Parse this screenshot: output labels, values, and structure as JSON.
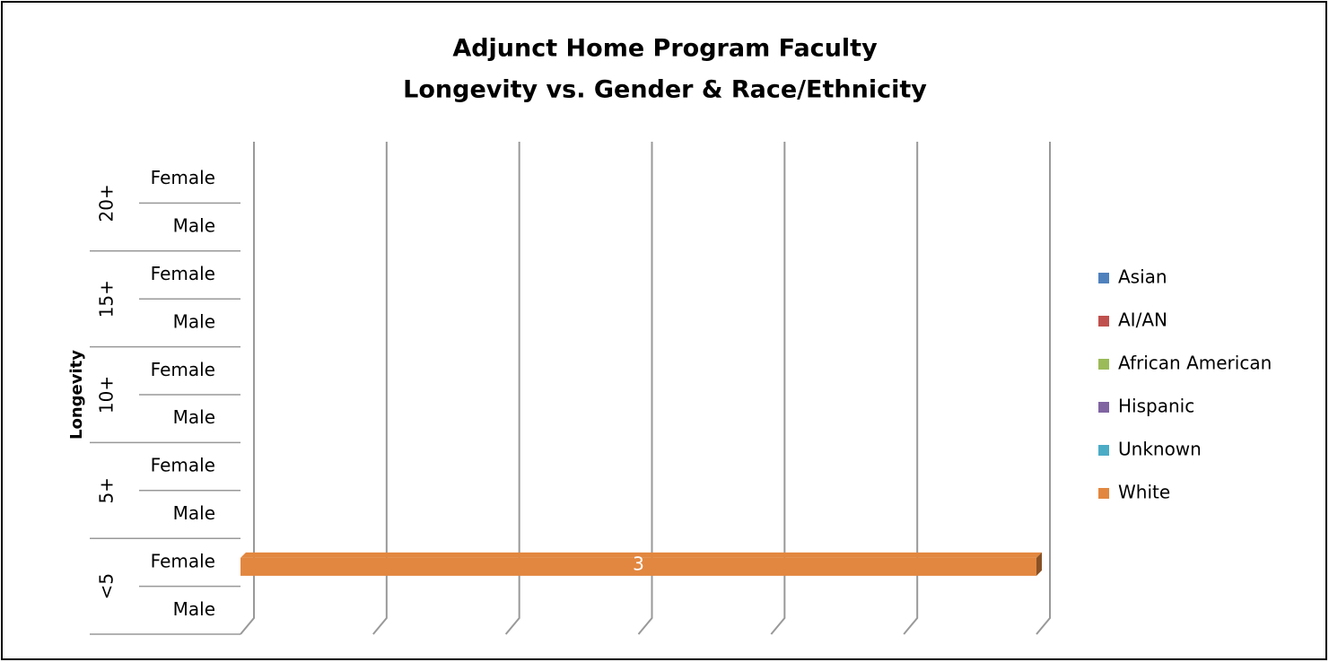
{
  "chart_data": {
    "type": "bar",
    "stacked": true,
    "orientation": "horizontal",
    "title": [
      "Adjunct Home Program Faculty",
      "Longevity vs. Gender & Race/Ethnicity"
    ],
    "y_label": "Longevity",
    "groups": [
      "20+",
      "15+",
      "10+",
      "5+",
      "<5"
    ],
    "categories": [
      "Female",
      "Male",
      "Female",
      "Male",
      "Female",
      "Male",
      "Female",
      "Male",
      "Female",
      "Male"
    ],
    "series": [
      {
        "name": "Asian",
        "color": "#4f81bd",
        "values": [
          0,
          0,
          0,
          0,
          0,
          0,
          0,
          0,
          0,
          0
        ]
      },
      {
        "name": "AI/AN",
        "color": "#c0504d",
        "values": [
          0,
          0,
          0,
          0,
          0,
          0,
          0,
          0,
          0,
          0
        ]
      },
      {
        "name": "African American",
        "color": "#9bbb59",
        "values": [
          0,
          0,
          0,
          0,
          0,
          0,
          0,
          0,
          0,
          0
        ]
      },
      {
        "name": "Hispanic",
        "color": "#8064a2",
        "values": [
          0,
          0,
          0,
          0,
          0,
          0,
          0,
          0,
          0,
          0
        ]
      },
      {
        "name": "Unknown",
        "color": "#4bacc6",
        "values": [
          0,
          0,
          0,
          0,
          0,
          0,
          0,
          0,
          0,
          0
        ]
      },
      {
        "name": "White",
        "color": "#e2873f",
        "values": [
          0,
          0,
          0,
          0,
          0,
          0,
          0,
          0,
          3,
          0
        ]
      }
    ],
    "xlim": [
      0,
      3
    ],
    "xticks": [
      0,
      0.5,
      1,
      1.5,
      2,
      2.5,
      3
    ],
    "grid": true,
    "legend": "right"
  }
}
